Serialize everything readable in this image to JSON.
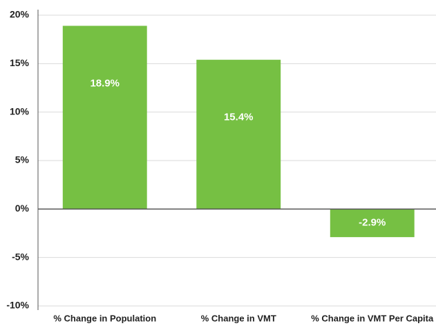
{
  "chart_data": {
    "type": "bar",
    "categories": [
      "% Change in Population",
      "% Change in VMT",
      "% Change in VMT Per Capita"
    ],
    "values": [
      18.9,
      15.4,
      -2.9
    ],
    "value_labels": [
      "18.9%",
      "15.4%",
      "-2.9%"
    ],
    "color": "#76c043",
    "ylim": [
      -10,
      20
    ],
    "yticks": [
      {
        "value": -10,
        "label": "-10%"
      },
      {
        "value": -5,
        "label": "-5%"
      },
      {
        "value": 0,
        "label": "0%"
      },
      {
        "value": 5,
        "label": "5%"
      },
      {
        "value": 10,
        "label": "10%"
      },
      {
        "value": 15,
        "label": "15%"
      },
      {
        "value": 20,
        "label": "20%"
      }
    ],
    "grid": true
  }
}
